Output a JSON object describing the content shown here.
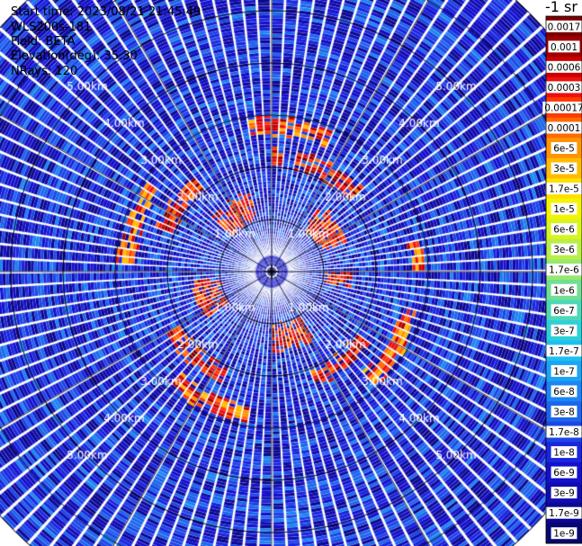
{
  "header": {
    "start_time": "Start time: 2023/08/21 21:45:49",
    "instrument": "WLS200s-181",
    "field": "Field: BETA",
    "elevation": "Elevation(deg): 35.30",
    "nrays": "NRays: 120"
  },
  "colorbar": {
    "unit_label": "-1 sr",
    "tick_labels": [
      "0.0017",
      "0.001",
      "0.0006",
      "0.0003",
      "0.00017",
      "0.0001",
      "6e-5",
      "3e-5",
      "1.7e-5",
      "1e-5",
      "6e-6",
      "3e-6",
      "1.7e-6",
      "1e-6",
      "6e-7",
      "3e-7",
      "1.7e-7",
      "1e-7",
      "6e-8",
      "3e-8",
      "1.7e-8",
      "1e-8",
      "6e-9",
      "3e-9",
      "1.7e-9",
      "1e-9"
    ],
    "colors": [
      "#7a0000",
      "#a00000",
      "#cc0000",
      "#ee1010",
      "#ff3a00",
      "#ff6a00",
      "#ff9400",
      "#ffbb00",
      "#ffe000",
      "#f4f400",
      "#d8f41a",
      "#b8ee48",
      "#96e86e",
      "#72de94",
      "#4cd8b8",
      "#2ed0d8",
      "#1cc0f0",
      "#1aa4f6",
      "#1b86f2",
      "#1c66ec",
      "#1c46e6",
      "#1a26de",
      "#1410cc",
      "#100cb0",
      "#0c0890",
      "#080670"
    ]
  },
  "chart_data": {
    "type": "heatmap",
    "projection": "polar (PPI scan)",
    "field": "BETA",
    "elevation_deg": 35.3,
    "n_rays": 120,
    "range_unit": "km",
    "range_rings_km": [
      1,
      2,
      3,
      4,
      5
    ],
    "ring_labels": [
      "1.00km",
      "2.00km",
      "3.00km",
      "4.00km",
      "5.00km"
    ],
    "max_range_km": 7,
    "color_scale": "log",
    "value_range": [
      1e-09,
      0.0017
    ],
    "features": [
      {
        "description": "high-backscatter partial ring",
        "range_km": [
          1.0,
          1.5
        ],
        "value_approx": 0.0003
      },
      {
        "description": "high-backscatter arc segments",
        "range_km": [
          2.0,
          2.3
        ],
        "value_approx": 0.0003
      },
      {
        "description": "high-backscatter arc segments",
        "range_km": [
          2.6,
          2.9
        ],
        "value_approx": 0.0001
      }
    ],
    "background_value_approx": 1e-08
  }
}
